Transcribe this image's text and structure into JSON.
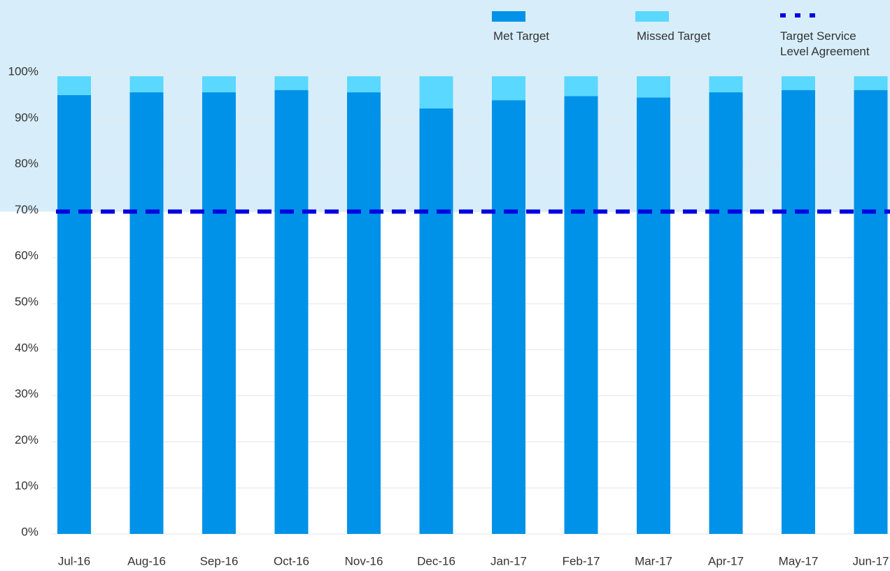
{
  "chart_data": {
    "type": "stacked-bar",
    "categories": [
      "Jul-16",
      "Aug-16",
      "Sep-16",
      "Oct-16",
      "Nov-16",
      "Dec-16",
      "Jan-17",
      "Feb-17",
      "Mar-17",
      "Apr-17",
      "May-17",
      "Jun-17"
    ],
    "series": [
      {
        "name": "Met Target",
        "color": "#0092e8",
        "values": [
          95.3,
          95.9,
          95.9,
          96.4,
          95.9,
          92.4,
          94.2,
          95.1,
          94.8,
          95.9,
          96.4,
          96.4
        ]
      },
      {
        "name": "Missed Target",
        "color": "#5ad8ff",
        "values": [
          4.1,
          3.5,
          3.5,
          3.0,
          3.5,
          7.0,
          5.2,
          4.3,
          4.6,
          3.5,
          3.0,
          3.0
        ]
      }
    ],
    "target": {
      "name": "Target Service Level Agreement",
      "value": 70,
      "color": "#0000e0"
    },
    "ylim": [
      0,
      100
    ],
    "yticks": [
      {
        "value": 0,
        "label": "0%"
      },
      {
        "value": 10,
        "label": "10%"
      },
      {
        "value": 20,
        "label": "20%"
      },
      {
        "value": 30,
        "label": "30%"
      },
      {
        "value": 40,
        "label": "40%"
      },
      {
        "value": 50,
        "label": "50%"
      },
      {
        "value": 60,
        "label": "60%"
      },
      {
        "value": 70,
        "label": "70%"
      },
      {
        "value": 80,
        "label": "80%"
      },
      {
        "value": 90,
        "label": "90%"
      },
      {
        "value": 100,
        "label": "100%"
      }
    ],
    "grid": true
  }
}
